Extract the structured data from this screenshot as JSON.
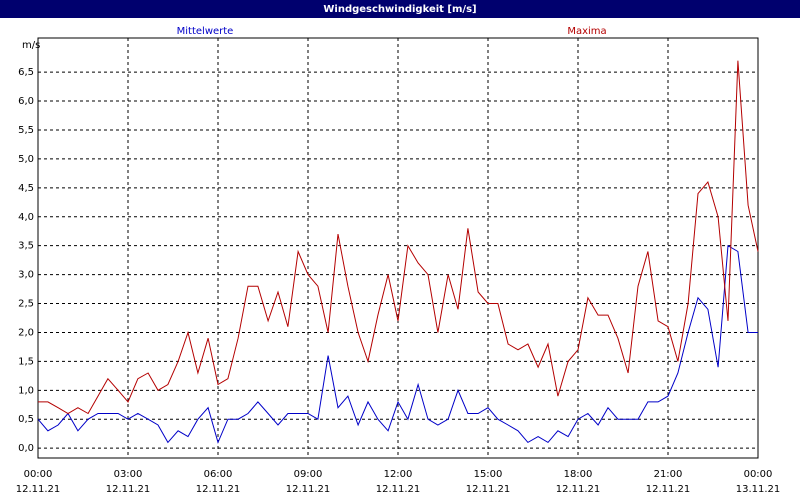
{
  "chart_data": {
    "type": "line",
    "title": "Windgeschwindigkeit [m/s]",
    "y_label": "m/s",
    "x": [
      0,
      0.33,
      0.67,
      1,
      1.33,
      1.67,
      2,
      2.33,
      2.67,
      3,
      3.33,
      3.67,
      4,
      4.33,
      4.67,
      5,
      5.33,
      5.67,
      6,
      6.33,
      6.67,
      7,
      7.33,
      7.67,
      8,
      8.33,
      8.67,
      9,
      9.33,
      9.67,
      10,
      10.33,
      10.67,
      11,
      11.33,
      11.67,
      12,
      12.33,
      12.67,
      13,
      13.33,
      13.67,
      14,
      14.33,
      14.67,
      15,
      15.33,
      15.67,
      16,
      16.33,
      16.67,
      17,
      17.33,
      17.67,
      18,
      18.33,
      18.67,
      19,
      19.33,
      19.67,
      20,
      20.33,
      20.67,
      21,
      21.33,
      21.67,
      22,
      22.33,
      22.67,
      23,
      23.33,
      23.67,
      24
    ],
    "series": [
      {
        "name": "Mittelwerte",
        "color": "#0000c8",
        "values": [
          0.5,
          0.3,
          0.4,
          0.6,
          0.3,
          0.5,
          0.6,
          0.6,
          0.6,
          0.5,
          0.6,
          0.5,
          0.4,
          0.1,
          0.3,
          0.2,
          0.5,
          0.7,
          0.1,
          0.5,
          0.5,
          0.6,
          0.8,
          0.6,
          0.4,
          0.6,
          0.6,
          0.6,
          0.5,
          1.6,
          0.7,
          0.9,
          0.4,
          0.8,
          0.5,
          0.3,
          0.8,
          0.5,
          1.1,
          0.5,
          0.4,
          0.5,
          1.0,
          0.6,
          0.6,
          0.7,
          0.5,
          0.4,
          0.3,
          0.1,
          0.2,
          0.1,
          0.3,
          0.2,
          0.5,
          0.6,
          0.4,
          0.7,
          0.5,
          0.5,
          0.5,
          0.8,
          0.8,
          0.9,
          1.3,
          2.0,
          2.6,
          2.4,
          1.4,
          3.5,
          3.4,
          2.0,
          2.0
        ]
      },
      {
        "name": "Maxima",
        "color": "#b40000",
        "values": [
          0.8,
          0.8,
          0.7,
          0.6,
          0.7,
          0.6,
          0.9,
          1.2,
          1.0,
          0.8,
          1.2,
          1.3,
          1.0,
          1.1,
          1.5,
          2.0,
          1.3,
          1.9,
          1.1,
          1.2,
          1.9,
          2.8,
          2.8,
          2.2,
          2.7,
          2.1,
          3.4,
          3.0,
          2.8,
          2.0,
          3.7,
          2.8,
          2.0,
          1.5,
          2.3,
          3.0,
          2.2,
          3.5,
          3.2,
          3.0,
          2.0,
          3.0,
          2.4,
          3.8,
          2.7,
          2.5,
          2.5,
          1.8,
          1.7,
          1.8,
          1.4,
          1.8,
          0.9,
          1.5,
          1.7,
          2.6,
          2.3,
          2.3,
          1.9,
          1.3,
          2.8,
          3.4,
          2.2,
          2.1,
          1.5,
          2.5,
          4.4,
          4.6,
          4.0,
          2.2,
          6.7,
          4.2,
          3.4
        ]
      }
    ],
    "xlim": [
      0,
      24
    ],
    "xticks": [
      {
        "value": 0,
        "label": "00:00"
      },
      {
        "value": 3,
        "label": "03:00"
      },
      {
        "value": 6,
        "label": "06:00"
      },
      {
        "value": 9,
        "label": "09:00"
      },
      {
        "value": 12,
        "label": "12:00"
      },
      {
        "value": 15,
        "label": "15:00"
      },
      {
        "value": 18,
        "label": "18:00"
      },
      {
        "value": 21,
        "label": "21:00"
      },
      {
        "value": 24,
        "label": "00:00"
      }
    ],
    "xtick_dates": [
      "12.11.21",
      "12.11.21",
      "12.11.21",
      "12.11.21",
      "12.11.21",
      "12.11.21",
      "12.11.21",
      "12.11.21",
      "13.11.21"
    ],
    "ylim": [
      -0.17,
      7.09
    ],
    "yticks": [
      {
        "value": 0,
        "label": "0,0"
      },
      {
        "value": 0.5,
        "label": "0,5"
      },
      {
        "value": 1,
        "label": "1,0"
      },
      {
        "value": 1.5,
        "label": "1,5"
      },
      {
        "value": 2,
        "label": "2,0"
      },
      {
        "value": 2.5,
        "label": "2,5"
      },
      {
        "value": 3,
        "label": "3,0"
      },
      {
        "value": 3.5,
        "label": "3,5"
      },
      {
        "value": 4,
        "label": "4,0"
      },
      {
        "value": 4.5,
        "label": "4,5"
      },
      {
        "value": 5,
        "label": "5,0"
      },
      {
        "value": 5.5,
        "label": "5,5"
      },
      {
        "value": 6,
        "label": "6,0"
      },
      {
        "value": 6.5,
        "label": "6,5"
      }
    ],
    "grid": true
  }
}
